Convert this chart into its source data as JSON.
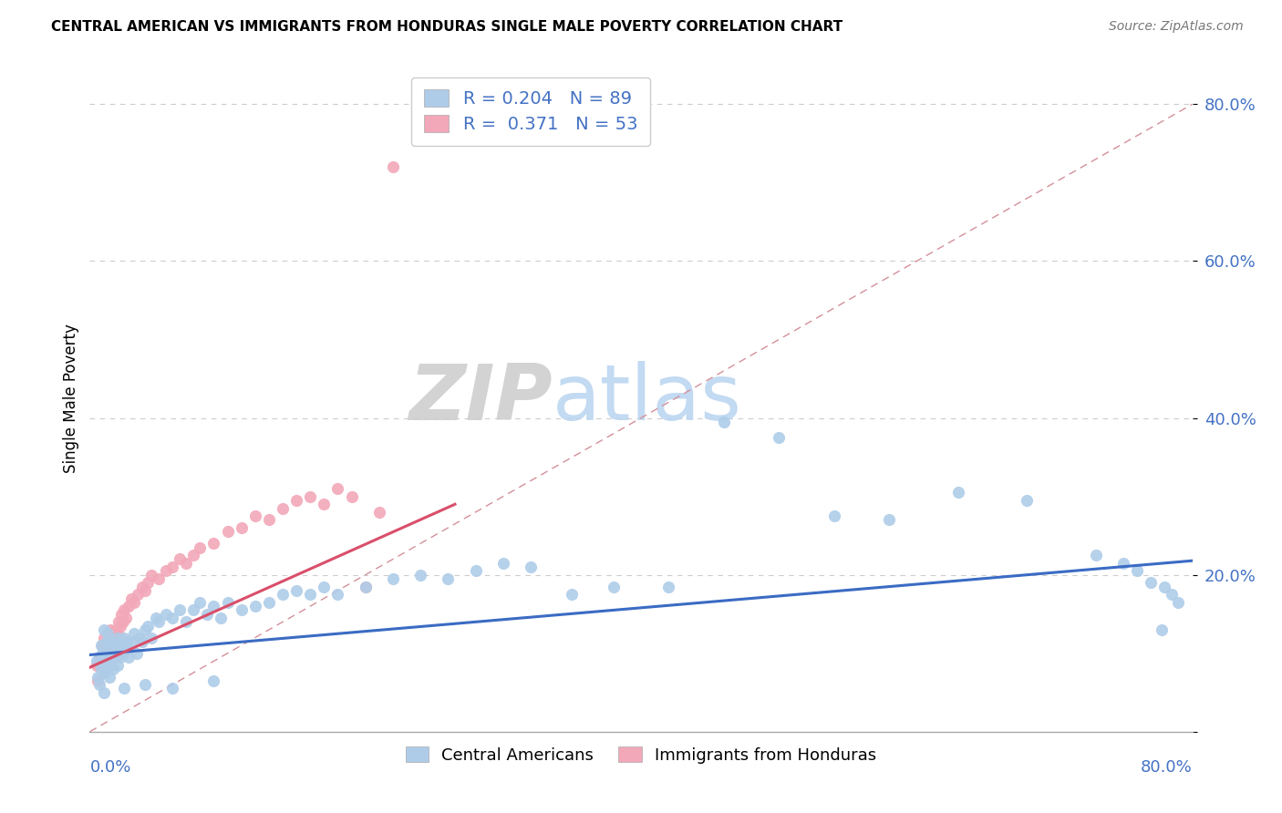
{
  "title": "CENTRAL AMERICAN VS IMMIGRANTS FROM HONDURAS SINGLE MALE POVERTY CORRELATION CHART",
  "source": "Source: ZipAtlas.com",
  "ylabel": "Single Male Poverty",
  "xlim": [
    0.0,
    0.8
  ],
  "ylim": [
    0.0,
    0.85
  ],
  "R1": 0.204,
  "N1": 89,
  "R2": 0.371,
  "N2": 53,
  "color_blue_dot": "#AECCE8",
  "color_pink_dot": "#F2A8B8",
  "color_blue_text": "#4472C4",
  "color_line_blue": "#3B6BC4",
  "color_line_pink": "#D94F6A",
  "color_diag": "#C8A0A8",
  "legend_label1": "Central Americans",
  "legend_label2": "Immigrants from Honduras",
  "blue_x": [
    0.005,
    0.006,
    0.007,
    0.008,
    0.008,
    0.009,
    0.01,
    0.01,
    0.011,
    0.012,
    0.012,
    0.013,
    0.013,
    0.014,
    0.015,
    0.015,
    0.016,
    0.017,
    0.018,
    0.018,
    0.019,
    0.02,
    0.02,
    0.021,
    0.022,
    0.022,
    0.023,
    0.024,
    0.025,
    0.026,
    0.027,
    0.028,
    0.03,
    0.032,
    0.034,
    0.036,
    0.038,
    0.04,
    0.042,
    0.045,
    0.048,
    0.05,
    0.055,
    0.06,
    0.065,
    0.07,
    0.075,
    0.08,
    0.085,
    0.09,
    0.095,
    0.1,
    0.11,
    0.12,
    0.13,
    0.14,
    0.15,
    0.16,
    0.17,
    0.18,
    0.2,
    0.22,
    0.24,
    0.26,
    0.28,
    0.3,
    0.32,
    0.35,
    0.38,
    0.42,
    0.46,
    0.5,
    0.54,
    0.58,
    0.63,
    0.68,
    0.73,
    0.75,
    0.76,
    0.77,
    0.778,
    0.78,
    0.785,
    0.79,
    0.01,
    0.025,
    0.04,
    0.06,
    0.09
  ],
  "blue_y": [
    0.09,
    0.07,
    0.06,
    0.11,
    0.08,
    0.1,
    0.13,
    0.075,
    0.095,
    0.115,
    0.085,
    0.105,
    0.125,
    0.07,
    0.09,
    0.115,
    0.1,
    0.08,
    0.11,
    0.095,
    0.105,
    0.12,
    0.085,
    0.1,
    0.115,
    0.095,
    0.11,
    0.1,
    0.12,
    0.105,
    0.115,
    0.095,
    0.115,
    0.125,
    0.1,
    0.12,
    0.115,
    0.13,
    0.135,
    0.12,
    0.145,
    0.14,
    0.15,
    0.145,
    0.155,
    0.14,
    0.155,
    0.165,
    0.15,
    0.16,
    0.145,
    0.165,
    0.155,
    0.16,
    0.165,
    0.175,
    0.18,
    0.175,
    0.185,
    0.175,
    0.185,
    0.195,
    0.2,
    0.195,
    0.205,
    0.215,
    0.21,
    0.175,
    0.185,
    0.185,
    0.395,
    0.375,
    0.275,
    0.27,
    0.305,
    0.295,
    0.225,
    0.215,
    0.205,
    0.19,
    0.13,
    0.185,
    0.175,
    0.165,
    0.05,
    0.055,
    0.06,
    0.055,
    0.065
  ],
  "pink_x": [
    0.005,
    0.006,
    0.007,
    0.008,
    0.009,
    0.01,
    0.01,
    0.011,
    0.012,
    0.013,
    0.014,
    0.015,
    0.015,
    0.016,
    0.017,
    0.018,
    0.019,
    0.02,
    0.021,
    0.022,
    0.023,
    0.024,
    0.025,
    0.026,
    0.028,
    0.03,
    0.032,
    0.035,
    0.038,
    0.04,
    0.042,
    0.045,
    0.05,
    0.055,
    0.06,
    0.065,
    0.07,
    0.075,
    0.08,
    0.09,
    0.1,
    0.11,
    0.12,
    0.13,
    0.14,
    0.15,
    0.16,
    0.17,
    0.18,
    0.19,
    0.2,
    0.21,
    0.22
  ],
  "pink_y": [
    0.085,
    0.065,
    0.095,
    0.08,
    0.11,
    0.12,
    0.075,
    0.1,
    0.115,
    0.09,
    0.105,
    0.13,
    0.085,
    0.12,
    0.11,
    0.095,
    0.13,
    0.125,
    0.14,
    0.135,
    0.15,
    0.14,
    0.155,
    0.145,
    0.16,
    0.17,
    0.165,
    0.175,
    0.185,
    0.18,
    0.19,
    0.2,
    0.195,
    0.205,
    0.21,
    0.22,
    0.215,
    0.225,
    0.235,
    0.24,
    0.255,
    0.26,
    0.275,
    0.27,
    0.285,
    0.295,
    0.3,
    0.29,
    0.31,
    0.3,
    0.185,
    0.28,
    0.72
  ],
  "blue_trend_x": [
    0.0,
    0.8
  ],
  "blue_trend_y": [
    0.098,
    0.218
  ],
  "pink_trend_x": [
    0.0,
    0.265
  ],
  "pink_trend_y": [
    0.082,
    0.29
  ]
}
